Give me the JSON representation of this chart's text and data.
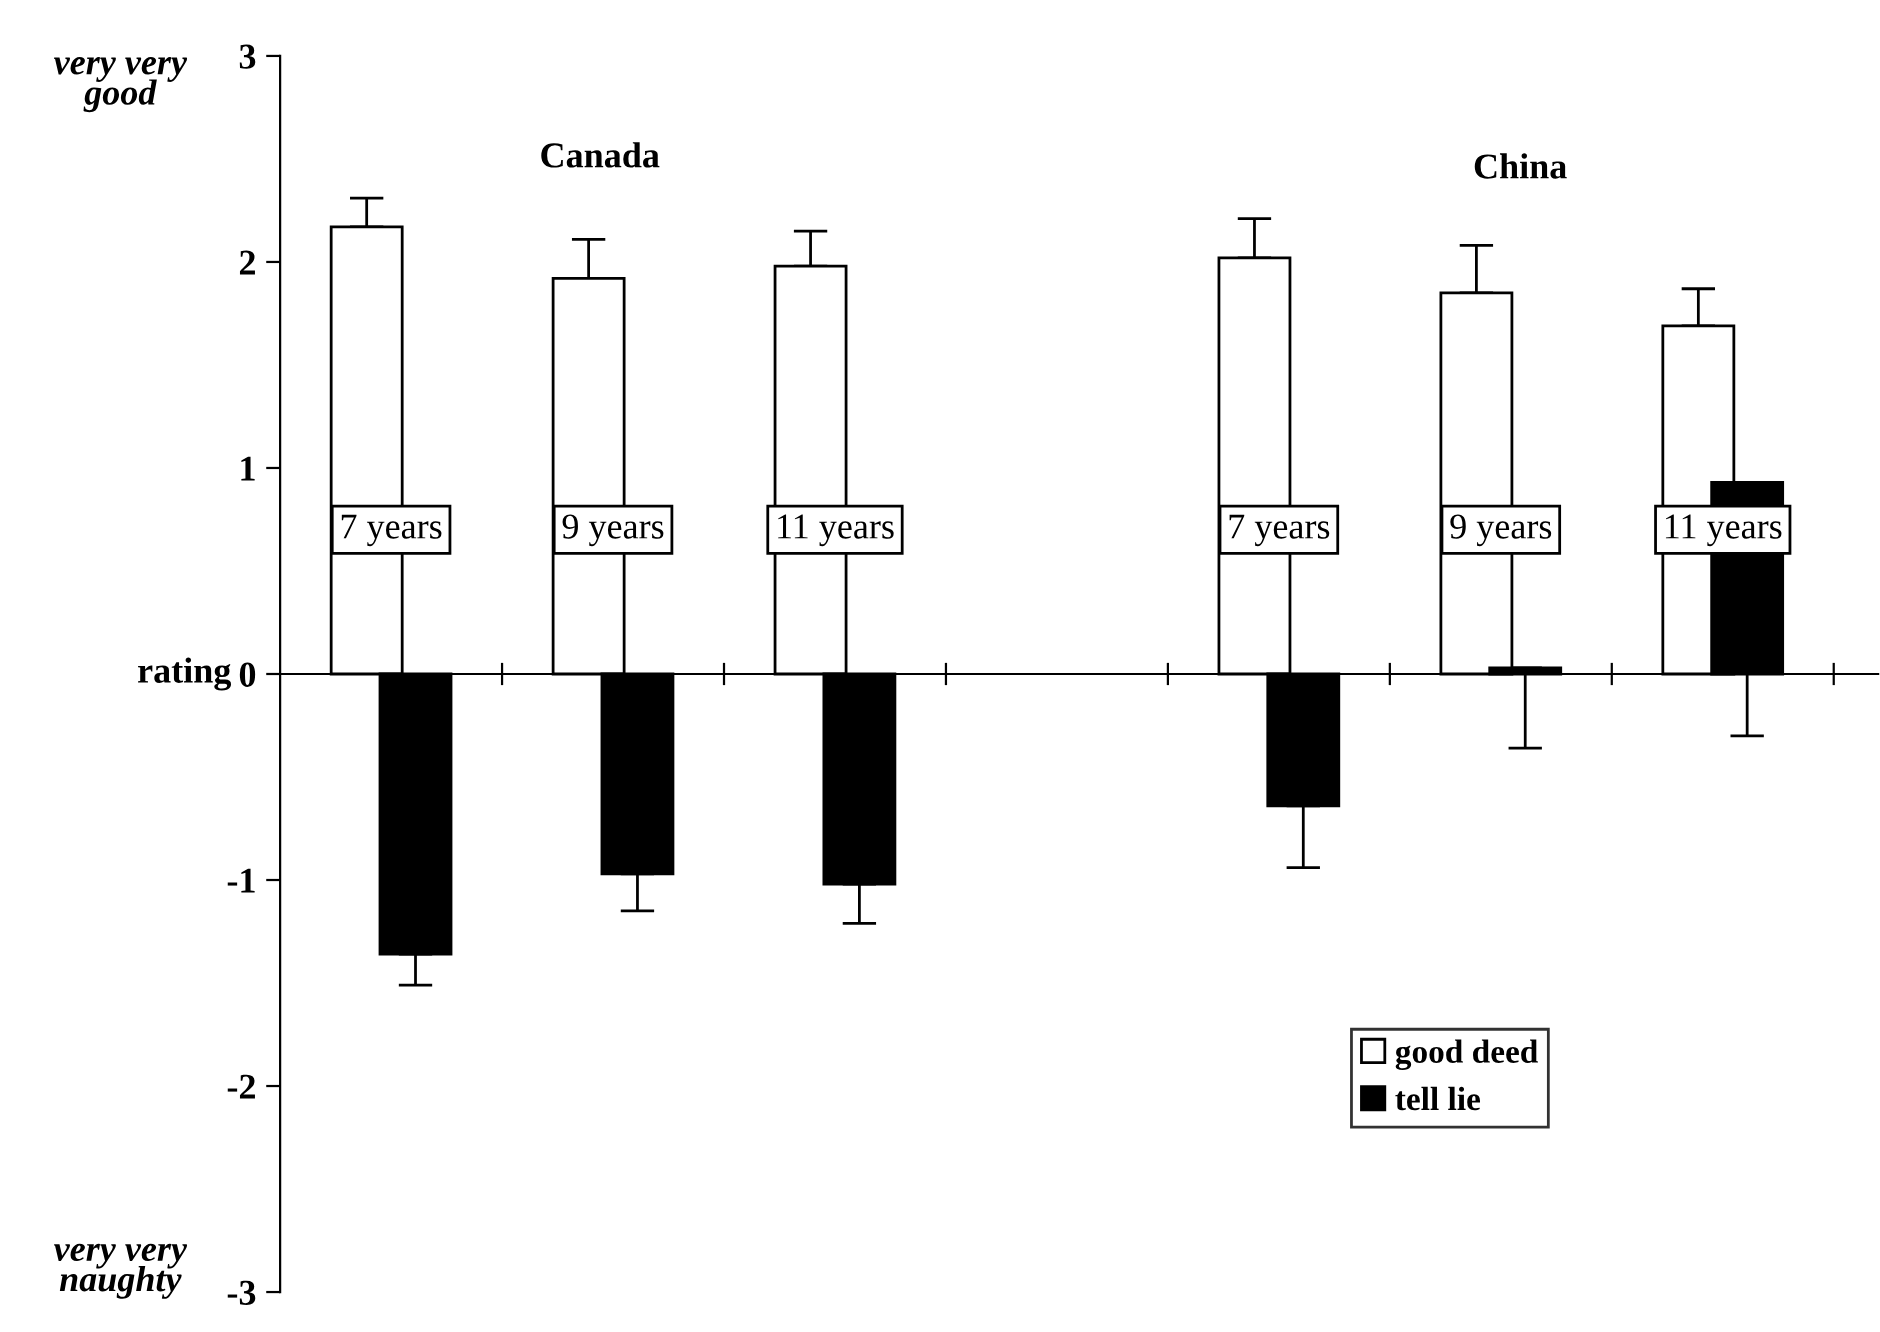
{
  "chart_data": {
    "type": "bar",
    "categories": [
      "7 years",
      "9 years",
      "11 years",
      null,
      "7 years",
      "9 years",
      "11 years"
    ],
    "series": [
      {
        "name": "good deed",
        "color": "#ffffff",
        "values": [
          2.17,
          1.92,
          1.98,
          null,
          2.02,
          1.85,
          1.69
        ],
        "errors": [
          [
            2.17,
            2.31
          ],
          [
            1.92,
            2.11
          ],
          [
            1.98,
            2.15
          ],
          null,
          [
            2.02,
            2.21
          ],
          [
            1.85,
            2.08
          ],
          [
            1.69,
            1.87
          ]
        ]
      },
      {
        "name": "tell lie",
        "color": "#000000",
        "values": [
          -1.36,
          -0.97,
          -1.02,
          null,
          -0.64,
          0.03,
          0.93
        ],
        "errors": [
          [
            -1.51,
            -1.36
          ],
          [
            -1.15,
            -0.97
          ],
          [
            -1.21,
            -1.02
          ],
          null,
          [
            -0.94,
            -0.64
          ],
          [
            -0.36,
            0.03
          ],
          [
            -0.3,
            0.93
          ]
        ]
      }
    ],
    "ylabel": "rating",
    "ylim": [
      -3,
      3
    ],
    "yticks": [
      -3,
      -2,
      -1,
      0,
      1,
      2,
      3
    ],
    "annotations": [
      "Canada",
      "China",
      "very very\ngood",
      "very very\nnaughty"
    ],
    "legend": "bottom right"
  }
}
